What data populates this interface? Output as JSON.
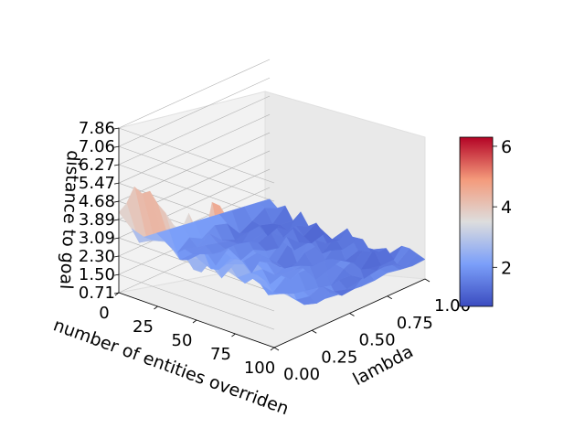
{
  "chart_data": {
    "type": "surface3d",
    "title": "",
    "xlabel": "number of entities overriden",
    "ylabel": "lambda",
    "zlabel": "distance to goal",
    "x_ticks": [
      "0",
      "25",
      "50",
      "75",
      "100"
    ],
    "x_range": [
      0,
      100
    ],
    "y_ticks": [
      "0.00",
      "0.25",
      "0.50",
      "0.75",
      "1.00"
    ],
    "y_range": [
      0.0,
      1.0
    ],
    "z_ticks": [
      "0.71",
      "1.50",
      "2.30",
      "3.09",
      "3.89",
      "4.68",
      "5.47",
      "6.27",
      "7.06",
      "7.86"
    ],
    "z_range": [
      0.71,
      7.86
    ],
    "colormap": "coolwarm",
    "colorbar": {
      "ticks": [
        "2",
        "4",
        "6"
      ],
      "range": [
        0.71,
        6.3
      ],
      "placement": "right"
    },
    "description_values": {
      "lambda_0_distance_range": [
        4.0,
        6.3
      ],
      "lambda_mid_distance_range": [
        1.0,
        2.8
      ],
      "lambda_1_distance_range": [
        0.8,
        1.5
      ],
      "x_0_edge_distance": 3.0
    }
  },
  "colors": {
    "low": "#3b4cc0",
    "mid": "#dddddd",
    "high": "#b40426",
    "grid": "#b0b0b0",
    "pane": "#f2f2f2"
  }
}
